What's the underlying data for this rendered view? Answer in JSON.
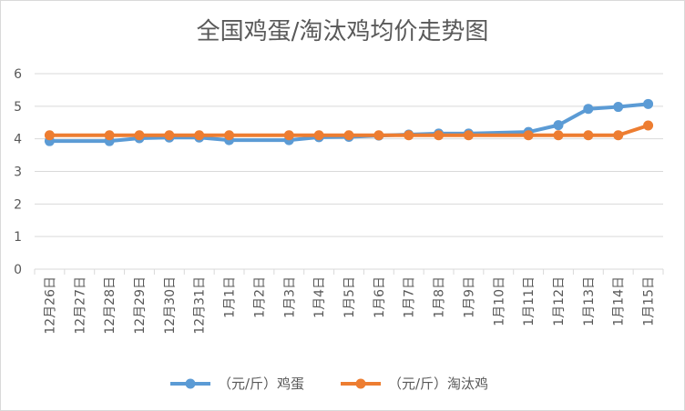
{
  "chart_data": {
    "type": "line",
    "title": "全国鸡蛋/淘汰鸡均价走势图",
    "categories": [
      "12月26日",
      "12月27日",
      "12月28日",
      "12月29日",
      "12月30日",
      "12月31日",
      "1月1日",
      "1月2日",
      "1月3日",
      "1月4日",
      "1月5日",
      "1月6日",
      "1月7日",
      "1月8日",
      "1月9日",
      "1月10日",
      "1月11日",
      "1月12日",
      "1月13日",
      "1月14日",
      "1月15日"
    ],
    "ylim": [
      0,
      6
    ],
    "yticks": [
      "0",
      "1",
      "2",
      "3",
      "4",
      "5",
      "6"
    ],
    "grid": true,
    "legend_position": "bottom",
    "series": [
      {
        "name": "（元/斤）鸡蛋",
        "color": "#5b9bd5",
        "values": [
          3.93,
          null,
          3.93,
          4.02,
          4.04,
          4.04,
          3.96,
          null,
          3.96,
          4.05,
          4.06,
          4.1,
          4.13,
          4.16,
          4.16,
          null,
          4.21,
          4.42,
          4.92,
          4.98,
          5.07
        ]
      },
      {
        "name": "（元/斤）淘汰鸡",
        "color": "#ed7d31",
        "values": [
          4.11,
          null,
          4.11,
          4.11,
          4.11,
          4.11,
          4.11,
          null,
          4.11,
          4.11,
          4.11,
          4.11,
          4.11,
          4.11,
          4.11,
          null,
          4.11,
          4.11,
          4.11,
          4.11,
          4.41
        ]
      }
    ]
  }
}
